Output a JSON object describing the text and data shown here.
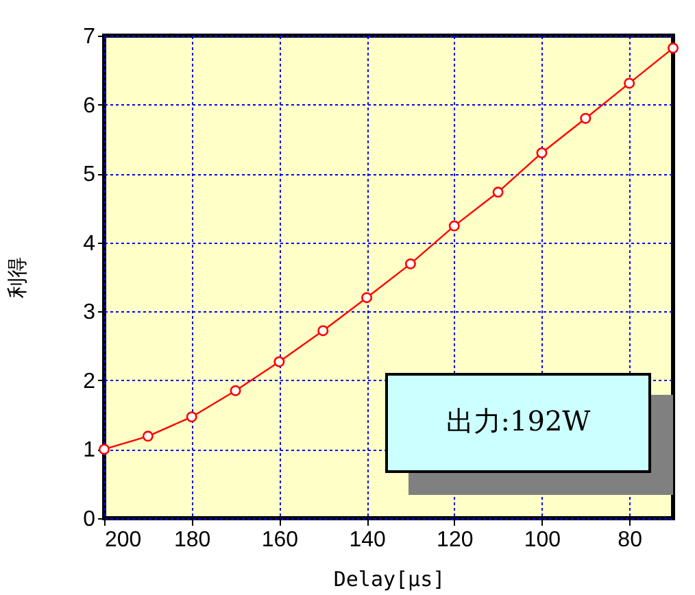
{
  "chart_data": {
    "type": "line",
    "xlabel": "Delay[μs]",
    "ylabel": "利得",
    "x": [
      200,
      190,
      180,
      170,
      160,
      150,
      140,
      130,
      120,
      110,
      100,
      90,
      80,
      70
    ],
    "series": [
      {
        "color": "#ff0000",
        "values": [
          1.0,
          1.19,
          1.47,
          1.85,
          2.27,
          2.72,
          3.2,
          3.69,
          4.24,
          4.73,
          5.3,
          5.8,
          6.31,
          6.82
        ]
      }
    ],
    "xlim": [
      200,
      70
    ],
    "xticks": [
      200,
      180,
      160,
      140,
      120,
      100,
      80
    ],
    "ylim": [
      0,
      7
    ],
    "yticks": [
      0,
      1,
      2,
      3,
      4,
      5,
      6,
      7
    ],
    "grid": true,
    "marker": "circle",
    "line_style": "solid",
    "annotations": [
      "出力:192W"
    ]
  }
}
